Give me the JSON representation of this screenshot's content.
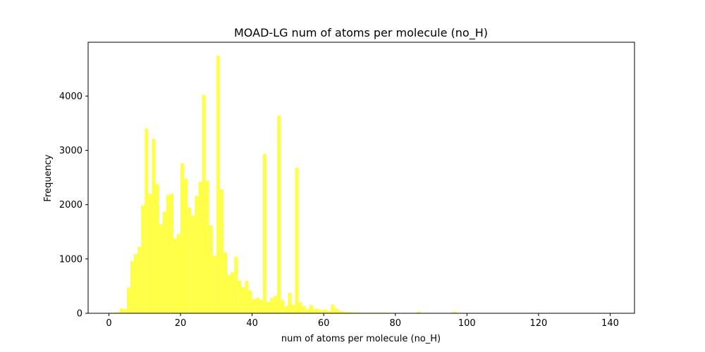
{
  "chart_data": {
    "type": "bar",
    "title": "MOAD-LG num of atoms per molecule (no_H)",
    "xlabel": "num of atoms per molecule (no_H)",
    "ylabel": "Frequency",
    "xlim": [
      -5.8,
      146.8
    ],
    "ylim": [
      0,
      4990
    ],
    "xticks": [
      "0",
      "20",
      "40",
      "60",
      "80",
      "100",
      "120",
      "140"
    ],
    "yticks": [
      "0",
      "1000",
      "2000",
      "3000",
      "4000"
    ],
    "bar_color": "#ffff00",
    "bin_width": 1,
    "bins_start": [
      1,
      2,
      3,
      4,
      5,
      6,
      7,
      8,
      9,
      10,
      11,
      12,
      13,
      14,
      15,
      16,
      17,
      18,
      19,
      20,
      21,
      22,
      23,
      24,
      25,
      26,
      27,
      28,
      29,
      30,
      31,
      32,
      33,
      34,
      35,
      36,
      37,
      38,
      39,
      40,
      41,
      42,
      43,
      44,
      45,
      46,
      47,
      48,
      49,
      50,
      51,
      52,
      53,
      54,
      55,
      56,
      57,
      58,
      59,
      60,
      61,
      62,
      63,
      64,
      65,
      66,
      67,
      68,
      69,
      70,
      71,
      72,
      73,
      74,
      75,
      76,
      77,
      78,
      79,
      80,
      86,
      96
    ],
    "values": [
      10,
      20,
      90,
      80,
      470,
      960,
      1090,
      1220,
      1990,
      3400,
      2200,
      3210,
      2380,
      1640,
      1870,
      2180,
      2200,
      1380,
      1460,
      2760,
      2480,
      1950,
      1800,
      2160,
      2420,
      4020,
      2440,
      1620,
      1060,
      4740,
      2280,
      1120,
      700,
      760,
      1040,
      600,
      480,
      600,
      420,
      260,
      290,
      250,
      2930,
      210,
      280,
      320,
      3640,
      250,
      130,
      380,
      160,
      2680,
      200,
      130,
      80,
      150,
      80,
      80,
      60,
      70,
      40,
      160,
      90,
      50,
      30,
      20,
      20,
      15,
      15,
      10,
      10,
      10,
      10,
      10,
      15,
      10,
      10,
      5,
      5,
      5,
      30,
      30
    ]
  }
}
